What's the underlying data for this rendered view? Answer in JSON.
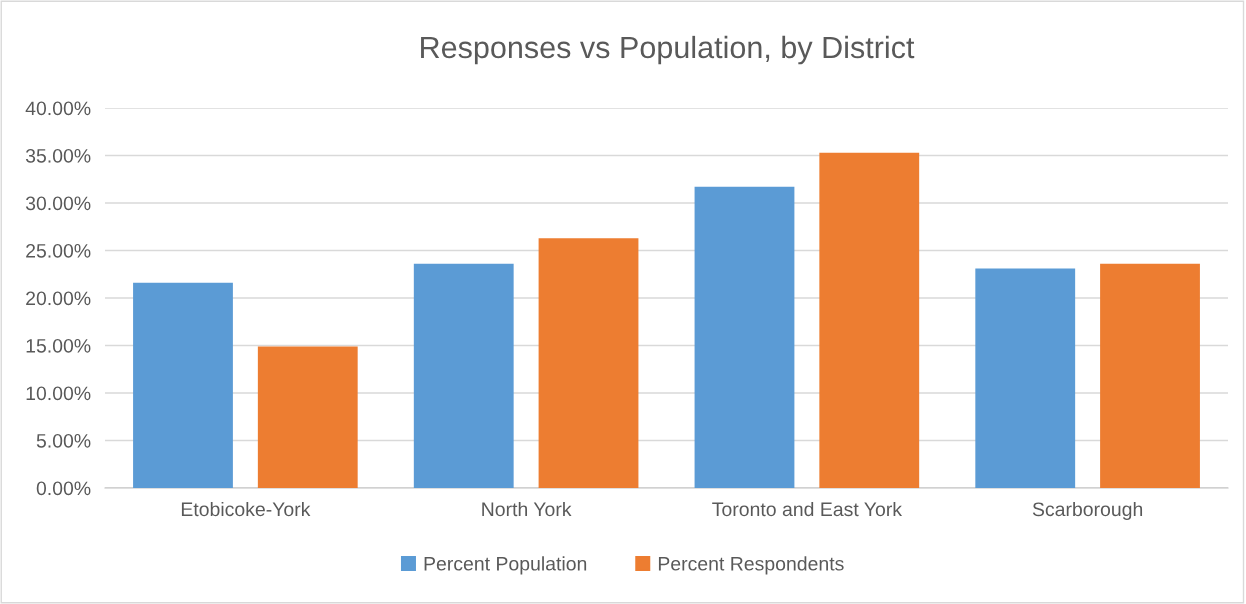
{
  "chart_data": {
    "type": "bar",
    "title": "Responses vs Population, by District",
    "categories": [
      "Etobicoke-York",
      "North York",
      "Toronto and East York",
      "Scarborough"
    ],
    "series": [
      {
        "name": "Percent Population",
        "color": "#5b9bd5",
        "values": [
          21.6,
          23.6,
          31.7,
          23.1
        ]
      },
      {
        "name": "Percent Respondents",
        "color": "#ed7d31",
        "values": [
          14.9,
          26.3,
          35.3,
          23.6
        ]
      }
    ],
    "ylim": [
      0,
      40
    ],
    "yticks": [
      {
        "value": 0,
        "label": "0.00%"
      },
      {
        "value": 5,
        "label": "5.00%"
      },
      {
        "value": 10,
        "label": "10.00%"
      },
      {
        "value": 15,
        "label": "15.00%"
      },
      {
        "value": 20,
        "label": "20.00%"
      },
      {
        "value": 25,
        "label": "25.00%"
      },
      {
        "value": 30,
        "label": "30.00%"
      },
      {
        "value": 35,
        "label": "35.00%"
      },
      {
        "value": 40,
        "label": "40.00%"
      }
    ],
    "grid": "y",
    "legend": "bottom"
  }
}
